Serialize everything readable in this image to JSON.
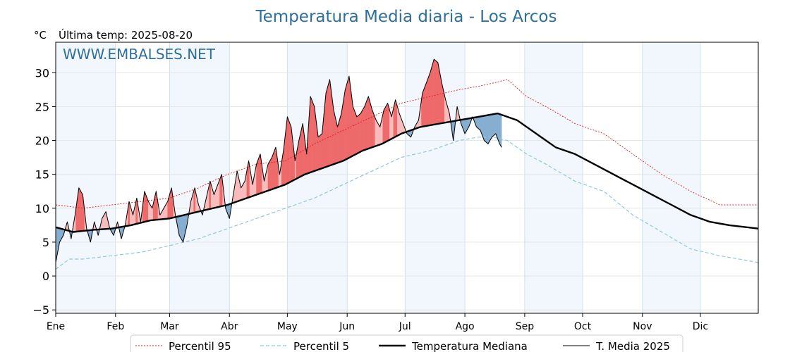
{
  "chart_data": {
    "type": "line",
    "title": "Temperatura Media diaria - Los Arcos",
    "unit_label": "°C",
    "last_temp_label": "Última temp: 2025-08-20",
    "watermark": "WWW.EMBALSES.NET",
    "ylim": [
      -5.5,
      34.5
    ],
    "yticks": [
      -5,
      0,
      5,
      10,
      15,
      20,
      25,
      30
    ],
    "yticks_text": [
      "−5",
      "0",
      "5",
      "10",
      "15",
      "20",
      "25",
      "30"
    ],
    "months": [
      "Ene",
      "Feb",
      "Mar",
      "Abr",
      "May",
      "Jun",
      "Jul",
      "Ago",
      "Sep",
      "Oct",
      "Nov",
      "Dic"
    ],
    "xlim": [
      1,
      365
    ],
    "grid": true,
    "legend_position": "bottom",
    "series": [
      {
        "name": "Percentil 95",
        "style": "dotted-red",
        "x": [
          1,
          15,
          30,
          45,
          60,
          75,
          90,
          105,
          120,
          135,
          150,
          165,
          180,
          195,
          210,
          220,
          228,
          235,
          245,
          255,
          270,
          285,
          300,
          315,
          330,
          345,
          365
        ],
        "values": [
          10.5,
          10.0,
          10.5,
          11.0,
          11.5,
          13.0,
          15.0,
          16.5,
          17.0,
          19.5,
          21.5,
          23.5,
          25.5,
          26.5,
          27.5,
          28.0,
          28.5,
          29.0,
          26.5,
          25.0,
          22.5,
          21.0,
          18.0,
          15.0,
          12.5,
          10.5,
          10.5
        ]
      },
      {
        "name": "Percentil 5",
        "style": "dashed-lightblue",
        "x": [
          1,
          8,
          15,
          30,
          45,
          60,
          75,
          90,
          105,
          120,
          135,
          150,
          165,
          180,
          195,
          210,
          220,
          228,
          235,
          245,
          255,
          270,
          285,
          300,
          315,
          330,
          345,
          365
        ],
        "values": [
          1.0,
          2.5,
          2.5,
          3.0,
          3.5,
          4.5,
          5.5,
          7.0,
          8.5,
          10.0,
          11.5,
          13.5,
          15.5,
          17.5,
          18.5,
          20.0,
          20.5,
          20.5,
          20.0,
          18.0,
          16.5,
          14.0,
          12.5,
          9.0,
          6.5,
          4.0,
          3.0,
          2.0
        ]
      },
      {
        "name": "Temperatura Mediana",
        "style": "thick-black",
        "x": [
          1,
          10,
          20,
          30,
          40,
          50,
          60,
          75,
          90,
          100,
          110,
          120,
          130,
          140,
          150,
          160,
          170,
          180,
          190,
          200,
          210,
          220,
          230,
          240,
          250,
          260,
          270,
          280,
          290,
          300,
          310,
          320,
          330,
          340,
          350,
          365
        ],
        "values": [
          7.2,
          6.5,
          6.8,
          7.0,
          7.5,
          8.2,
          8.5,
          9.5,
          10.5,
          11.5,
          12.5,
          13.5,
          15.0,
          16.0,
          17.0,
          18.5,
          19.5,
          21.0,
          22.0,
          22.5,
          23.0,
          23.5,
          24.0,
          23.0,
          21.0,
          19.0,
          18.0,
          16.5,
          15.0,
          13.5,
          12.0,
          10.5,
          9.0,
          8.0,
          7.5,
          7.0
        ]
      },
      {
        "name": "T. Media 2025",
        "style": "thin-black",
        "x": [
          1,
          3,
          5,
          7,
          9,
          11,
          13,
          15,
          17,
          19,
          21,
          23,
          25,
          27,
          29,
          31,
          33,
          35,
          37,
          39,
          41,
          43,
          45,
          47,
          49,
          51,
          53,
          55,
          57,
          59,
          61,
          63,
          65,
          67,
          69,
          71,
          73,
          75,
          77,
          79,
          81,
          83,
          85,
          87,
          89,
          91,
          93,
          95,
          97,
          99,
          101,
          103,
          105,
          107,
          109,
          111,
          113,
          115,
          117,
          119,
          121,
          123,
          125,
          127,
          129,
          131,
          133,
          135,
          137,
          139,
          141,
          143,
          145,
          147,
          149,
          151,
          153,
          155,
          157,
          159,
          161,
          163,
          165,
          167,
          169,
          171,
          173,
          175,
          177,
          179,
          181,
          183,
          185,
          187,
          189,
          191,
          193,
          195,
          197,
          199,
          201,
          203,
          205,
          207,
          209,
          211,
          213,
          215,
          217,
          219,
          221,
          223,
          225,
          227,
          229,
          231,
          232
        ],
        "values": [
          2.0,
          5.0,
          6.0,
          8.0,
          5.5,
          9.0,
          13.0,
          12.0,
          7.0,
          5.0,
          8.0,
          6.0,
          8.5,
          9.5,
          7.0,
          6.0,
          8.0,
          5.5,
          7.5,
          11.0,
          9.0,
          11.5,
          8.0,
          12.5,
          11.0,
          10.0,
          12.5,
          9.0,
          10.0,
          11.0,
          13.0,
          9.0,
          6.0,
          5.0,
          7.5,
          11.0,
          13.0,
          10.5,
          9.0,
          11.5,
          14.0,
          12.0,
          13.5,
          15.0,
          10.0,
          8.5,
          12.0,
          15.5,
          13.0,
          14.0,
          17.0,
          13.5,
          16.5,
          18.0,
          14.0,
          16.5,
          17.5,
          19.0,
          15.0,
          18.5,
          23.5,
          22.0,
          17.0,
          20.0,
          22.5,
          18.0,
          26.5,
          25.0,
          20.5,
          21.0,
          27.0,
          29.0,
          24.5,
          22.0,
          24.0,
          27.5,
          29.5,
          25.0,
          23.5,
          24.0,
          25.0,
          26.5,
          24.5,
          23.0,
          22.0,
          24.5,
          25.5,
          23.5,
          26.0,
          24.0,
          22.5,
          21.0,
          20.5,
          22.0,
          23.0,
          27.0,
          28.5,
          30.0,
          32.0,
          31.5,
          28.5,
          26.0,
          24.0,
          20.0,
          25.0,
          22.5,
          21.0,
          22.0,
          23.5,
          22.0,
          21.5,
          20.0,
          19.5,
          20.5,
          21.0,
          19.5,
          19.0
        ]
      }
    ]
  },
  "legend": {
    "p95": "Percentil 95",
    "p5": "Percentil 5",
    "mediana": "Temperatura Mediana",
    "media2025": "T. Media 2025"
  }
}
